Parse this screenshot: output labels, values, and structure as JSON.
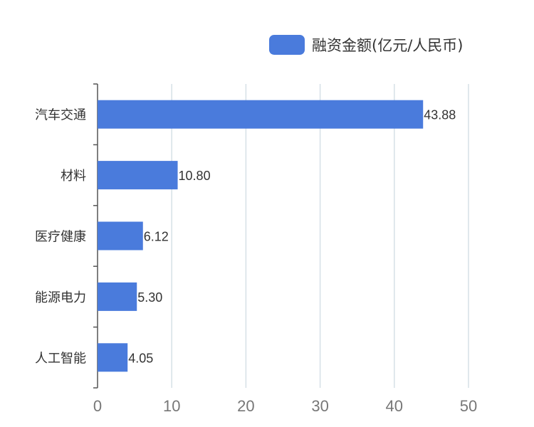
{
  "colors": {
    "bar": "#4a7bdc",
    "grid": "#d6e0e6",
    "axis": "#555555",
    "tick_text": "#777777",
    "label_text": "#333333"
  },
  "chart_data": {
    "type": "bar",
    "orientation": "horizontal",
    "categories": [
      "汽车交通",
      "材料",
      "医疗健康",
      "能源电力",
      "人工智能"
    ],
    "series": [
      {
        "name": "融资金额(亿元/人民币)",
        "values": [
          43.88,
          10.8,
          6.12,
          5.3,
          4.05
        ]
      }
    ],
    "value_labels": [
      "43.88",
      "10.80",
      "6.12",
      "5.30",
      "4.05"
    ],
    "xlim": [
      0,
      50
    ],
    "xticks": [
      0,
      10,
      20,
      30,
      40,
      50
    ],
    "grid": true,
    "legend_position": "top-right"
  }
}
